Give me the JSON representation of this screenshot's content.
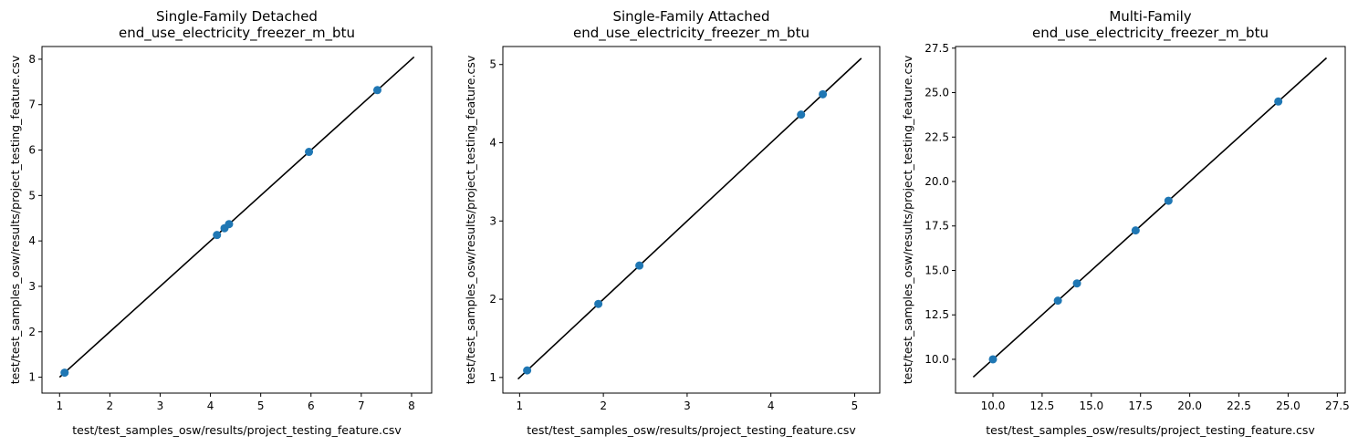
{
  "chart_data": [
    {
      "type": "scatter",
      "title": "Single-Family Detached",
      "subtitle": "end_use_electricity_freezer_m_btu",
      "xlabel": "test/test_samples_osw/results/project_testing_feature.csv",
      "ylabel": "test/test_samples_osw/results/project_testing_feature.csv",
      "xlim": [
        0.65,
        8.4
      ],
      "ylim": [
        0.65,
        8.4
      ],
      "xticks": [
        1,
        2,
        3,
        4,
        5,
        6,
        7,
        8
      ],
      "yticks": [
        1,
        2,
        3,
        4,
        5,
        6,
        7,
        8
      ],
      "xtick_labels": [
        "1",
        "2",
        "3",
        "4",
        "5",
        "6",
        "7",
        "8"
      ],
      "ytick_labels": [
        "1",
        "2",
        "3",
        "4",
        "5",
        "6",
        "7",
        "8"
      ],
      "points": [
        [
          1.1,
          1.1
        ],
        [
          4.13,
          4.13
        ],
        [
          4.28,
          4.28
        ],
        [
          4.37,
          4.37
        ],
        [
          5.96,
          5.96
        ],
        [
          7.32,
          7.32
        ]
      ],
      "reference_line": [
        [
          1.0,
          1.0
        ],
        [
          8.05,
          8.05
        ]
      ],
      "point_color": "#1f77b4",
      "line_color": "#000000",
      "grid": false
    },
    {
      "type": "scatter",
      "title": "Single-Family Attached",
      "subtitle": "end_use_electricity_freezer_m_btu",
      "xlabel": "test/test_samples_osw/results/project_testing_feature.csv",
      "ylabel": "test/test_samples_osw/results/project_testing_feature.csv",
      "xlim": [
        0.8,
        5.3
      ],
      "ylim": [
        0.8,
        5.3
      ],
      "xticks": [
        1,
        2,
        3,
        4,
        5
      ],
      "yticks": [
        1,
        2,
        3,
        4,
        5
      ],
      "xtick_labels": [
        "1",
        "2",
        "3",
        "4",
        "5"
      ],
      "ytick_labels": [
        "1",
        "2",
        "3",
        "4",
        "5"
      ],
      "points": [
        [
          1.09,
          1.09
        ],
        [
          1.94,
          1.94
        ],
        [
          2.43,
          2.43
        ],
        [
          4.36,
          4.36
        ],
        [
          4.62,
          4.62
        ]
      ],
      "reference_line": [
        [
          0.98,
          0.98
        ],
        [
          5.08,
          5.08
        ]
      ],
      "point_color": "#1f77b4",
      "line_color": "#000000",
      "grid": false
    },
    {
      "type": "scatter",
      "title": "Multi-Family",
      "subtitle": "end_use_electricity_freezer_m_btu",
      "xlabel": "test/test_samples_osw/results/project_testing_feature.csv",
      "ylabel": "test/test_samples_osw/results/project_testing_feature.csv",
      "xlim": [
        8.1,
        27.9
      ],
      "ylim": [
        8.1,
        27.9
      ],
      "xticks": [
        10,
        12.5,
        15,
        17.5,
        20,
        22.5,
        25,
        27.5
      ],
      "yticks": [
        10,
        12.5,
        15,
        17.5,
        20,
        22.5,
        25,
        27.5
      ],
      "xtick_labels": [
        "10.0",
        "12.5",
        "15.0",
        "17.5",
        "20.0",
        "22.5",
        "25.0",
        "27.5"
      ],
      "ytick_labels": [
        "10.0",
        "12.5",
        "15.0",
        "17.5",
        "20.0",
        "22.5",
        "25.0",
        "27.5"
      ],
      "points": [
        [
          10.0,
          10.0
        ],
        [
          13.3,
          13.3
        ],
        [
          14.27,
          14.27
        ],
        [
          17.25,
          17.25
        ],
        [
          18.92,
          18.92
        ],
        [
          24.5,
          24.5
        ]
      ],
      "reference_line": [
        [
          9.0,
          9.0
        ],
        [
          26.95,
          26.95
        ]
      ],
      "point_color": "#1f77b4",
      "line_color": "#000000",
      "grid": false
    }
  ]
}
